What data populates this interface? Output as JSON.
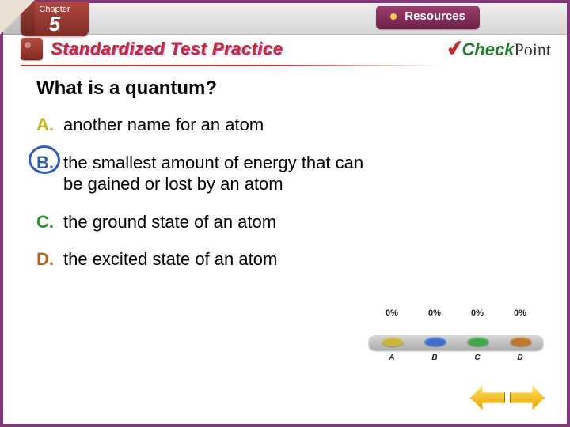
{
  "chapter": {
    "label": "Chapter",
    "number": "5"
  },
  "topbar": {
    "resources_label": "Resources",
    "resources_dot_color": "#f2d23c"
  },
  "subhead": {
    "title": "Standardized Test Practice",
    "checkpoint_brand_check": "Check",
    "checkpoint_brand_point": "Point"
  },
  "question": "What is a quantum?",
  "answers": [
    {
      "letter": "A.",
      "text": "another name for an atom",
      "cls": "a",
      "correct": false
    },
    {
      "letter": "B.",
      "text": "the smallest amount of energy that can be gained or lost by an atom",
      "cls": "b",
      "correct": true
    },
    {
      "letter": "C.",
      "text": "the ground state of an atom",
      "cls": "c",
      "correct": false
    },
    {
      "letter": "D.",
      "text": "the excited state of an atom",
      "cls": "d",
      "correct": false
    }
  ],
  "poll": {
    "percents": [
      "0%",
      "0%",
      "0%",
      "0%"
    ],
    "labels": [
      "A",
      "B",
      "C",
      "D"
    ],
    "button_colors": [
      "#c9b63a",
      "#3e6ed0",
      "#3fa84a",
      "#c0762b"
    ]
  },
  "colors": {
    "frame": "#803a7a",
    "subhead_title": "#b8332c",
    "circle": "#2f57d6"
  }
}
